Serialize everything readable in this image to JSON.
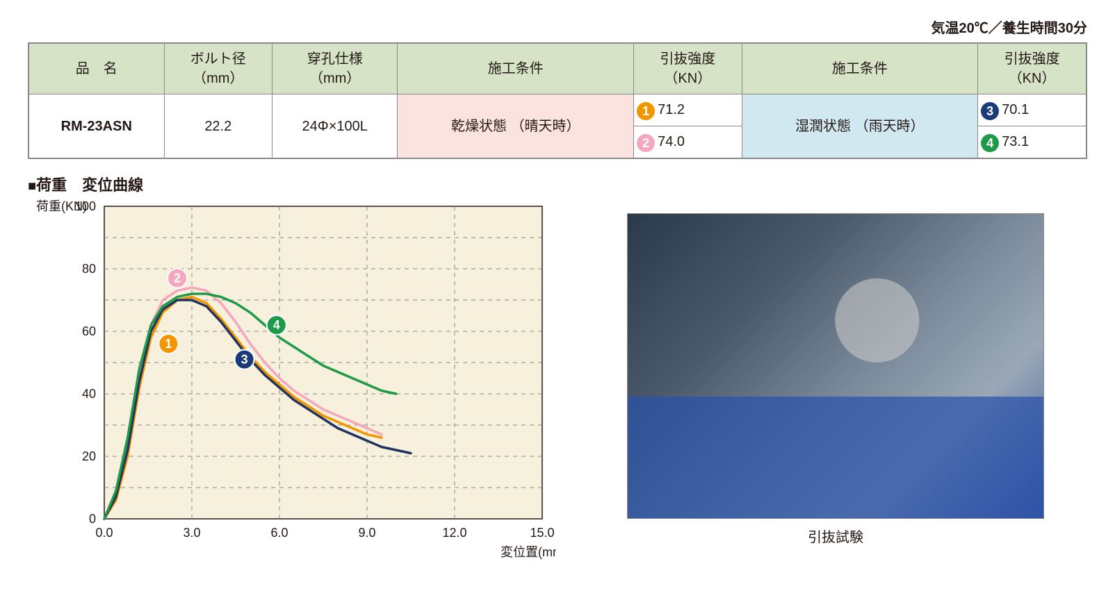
{
  "note": "気温20℃／養生時間30分",
  "table": {
    "headers": {
      "name": "品　名",
      "bolt": "ボルト径",
      "bolt_unit": "（mm）",
      "hole": "穿孔仕様",
      "hole_unit": "（mm）",
      "cond1": "施工条件",
      "str1": "引抜強度",
      "str1_unit": "（KN）",
      "cond2": "施工条件",
      "str2": "引抜強度",
      "str2_unit": "（KN）"
    },
    "row": {
      "name": "RM-23ASN",
      "bolt": "22.2",
      "hole": "24Φ×100L",
      "cond_dry_l1": "乾燥状態",
      "cond_dry_l2": "（晴天時）",
      "cond_wet_l1": "湿潤状態",
      "cond_wet_l2": "（雨天時）",
      "s1": {
        "num": "1",
        "val": "71.2",
        "color": "#f29600"
      },
      "s2": {
        "num": "2",
        "val": "74.0",
        "color": "#f5a7bd"
      },
      "s3": {
        "num": "3",
        "val": "70.1",
        "color": "#1b3a7a"
      },
      "s4": {
        "num": "4",
        "val": "73.1",
        "color": "#1e9b47"
      }
    }
  },
  "section_title": "荷重　変位曲線",
  "photo_caption": "引抜試験",
  "chart": {
    "type": "line",
    "background_color": "#f6f0dd",
    "grid_color": "#888888",
    "axis_color": "#231815",
    "font_size_axis": 18,
    "y_label": "荷重(KN)",
    "x_label": "変位置(mm)",
    "xlim": [
      0,
      15
    ],
    "x_ticks": [
      "0.0",
      "3.0",
      "6.0",
      "9.0",
      "12.0",
      "15.0"
    ],
    "x_tick_vals": [
      0,
      3,
      6,
      9,
      12,
      15
    ],
    "ylim": [
      0,
      100
    ],
    "y_ticks": [
      "0",
      "20",
      "40",
      "60",
      "80",
      "100"
    ],
    "y_tick_vals": [
      0,
      20,
      40,
      60,
      80,
      100
    ],
    "line_width": 3.5,
    "series": [
      {
        "id": "1",
        "label_color": "#f29600",
        "stroke": "#f29600",
        "marker_x": 2.2,
        "marker_y": 56,
        "points": [
          [
            0,
            0
          ],
          [
            0.4,
            6
          ],
          [
            0.8,
            20
          ],
          [
            1.2,
            42
          ],
          [
            1.6,
            58
          ],
          [
            2.0,
            66
          ],
          [
            2.5,
            70
          ],
          [
            3.0,
            71
          ],
          [
            3.5,
            69
          ],
          [
            4.0,
            64
          ],
          [
            4.5,
            58
          ],
          [
            5.0,
            52
          ],
          [
            5.5,
            47
          ],
          [
            6.0,
            43
          ],
          [
            6.5,
            39
          ],
          [
            7.0,
            36
          ],
          [
            7.5,
            33
          ],
          [
            8.0,
            31
          ],
          [
            8.5,
            29
          ],
          [
            9.0,
            27
          ],
          [
            9.5,
            26
          ]
        ]
      },
      {
        "id": "2",
        "label_color": "#f5a7bd",
        "stroke": "#f5a7bd",
        "marker_x": 2.5,
        "marker_y": 77,
        "points": [
          [
            0,
            0
          ],
          [
            0.4,
            8
          ],
          [
            0.8,
            24
          ],
          [
            1.2,
            46
          ],
          [
            1.6,
            62
          ],
          [
            2.0,
            70
          ],
          [
            2.5,
            73
          ],
          [
            3.0,
            74
          ],
          [
            3.5,
            73
          ],
          [
            4.0,
            69
          ],
          [
            4.5,
            63
          ],
          [
            5.0,
            56
          ],
          [
            5.5,
            50
          ],
          [
            6.0,
            45
          ],
          [
            6.5,
            41
          ],
          [
            7.0,
            38
          ],
          [
            7.5,
            35
          ],
          [
            8.0,
            33
          ],
          [
            8.5,
            31
          ],
          [
            9.0,
            29
          ],
          [
            9.5,
            27
          ]
        ]
      },
      {
        "id": "3",
        "label_color": "#1b3a7a",
        "stroke": "#22335f",
        "marker_x": 4.8,
        "marker_y": 51,
        "points": [
          [
            0,
            0
          ],
          [
            0.4,
            7
          ],
          [
            0.8,
            22
          ],
          [
            1.2,
            44
          ],
          [
            1.6,
            60
          ],
          [
            2.0,
            67
          ],
          [
            2.5,
            70
          ],
          [
            3.0,
            70
          ],
          [
            3.5,
            68
          ],
          [
            4.0,
            63
          ],
          [
            4.5,
            57
          ],
          [
            5.0,
            51
          ],
          [
            5.5,
            46
          ],
          [
            6.0,
            42
          ],
          [
            6.5,
            38
          ],
          [
            7.0,
            35
          ],
          [
            7.5,
            32
          ],
          [
            8.0,
            29
          ],
          [
            8.5,
            27
          ],
          [
            9.0,
            25
          ],
          [
            9.5,
            23
          ],
          [
            10.0,
            22
          ],
          [
            10.5,
            21
          ]
        ]
      },
      {
        "id": "4",
        "label_color": "#1e9b47",
        "stroke": "#1e9b47",
        "marker_x": 5.9,
        "marker_y": 62,
        "points": [
          [
            0,
            0
          ],
          [
            0.4,
            9
          ],
          [
            0.8,
            26
          ],
          [
            1.2,
            48
          ],
          [
            1.6,
            62
          ],
          [
            2.0,
            68
          ],
          [
            2.5,
            71
          ],
          [
            3.0,
            72
          ],
          [
            3.5,
            72
          ],
          [
            4.0,
            71
          ],
          [
            4.5,
            69
          ],
          [
            5.0,
            66
          ],
          [
            5.5,
            62
          ],
          [
            6.0,
            58
          ],
          [
            6.5,
            55
          ],
          [
            7.0,
            52
          ],
          [
            7.5,
            49
          ],
          [
            8.0,
            47
          ],
          [
            8.5,
            45
          ],
          [
            9.0,
            43
          ],
          [
            9.5,
            41
          ],
          [
            10.0,
            40
          ]
        ]
      }
    ]
  }
}
